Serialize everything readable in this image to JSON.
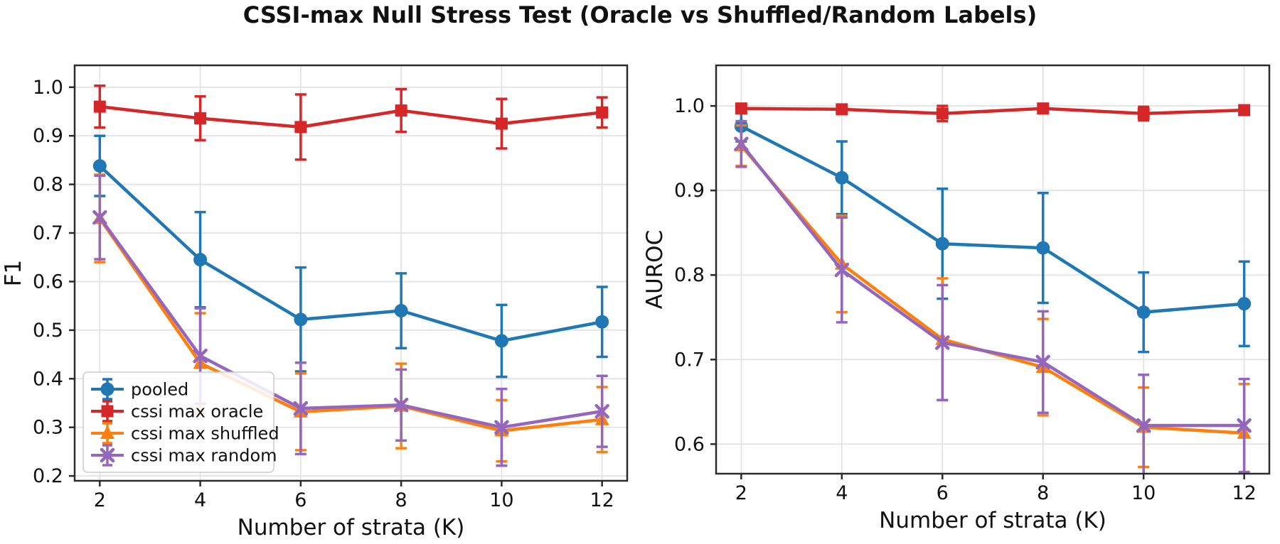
{
  "figure": {
    "title": "CSSI-max Null Stress Test (Oracle vs Shuffled/Random Labels)",
    "background": "#ffffff",
    "text_color": "#111111",
    "grid_color": "#e3e3e3",
    "spine_color": "#2b2b2b",
    "legend_border_color": "#cccccc",
    "legend_background": "#ffffff"
  },
  "chart_data": [
    {
      "type": "line",
      "title": "",
      "xlabel": "Number of strata (K)",
      "ylabel": "F1",
      "x": [
        2,
        4,
        6,
        8,
        10,
        12
      ],
      "xticks": [
        2,
        4,
        6,
        8,
        10,
        12
      ],
      "yticks": [
        0.2,
        0.3,
        0.4,
        0.5,
        0.6,
        0.7,
        0.8,
        0.9,
        1.0
      ],
      "xlim": [
        1.5,
        12.5
      ],
      "ylim": [
        0.19,
        1.045
      ],
      "grid": true,
      "show_legend": true,
      "legend_position": "lower left",
      "series": [
        {
          "name": "pooled",
          "color": "#1f77b4",
          "marker": "circle",
          "values": [
            0.838,
            0.645,
            0.522,
            0.54,
            0.478,
            0.517
          ],
          "yerr": [
            0.062,
            0.098,
            0.107,
            0.077,
            0.074,
            0.072
          ]
        },
        {
          "name": "cssi max oracle",
          "color": "#d62728",
          "marker": "square",
          "values": [
            0.96,
            0.936,
            0.918,
            0.952,
            0.925,
            0.948
          ],
          "yerr": [
            0.043,
            0.045,
            0.067,
            0.044,
            0.051,
            0.031
          ]
        },
        {
          "name": "cssi max shuffled",
          "color": "#ff7f0e",
          "marker": "triangle",
          "values": [
            0.73,
            0.432,
            0.332,
            0.344,
            0.293,
            0.316
          ],
          "yerr": [
            0.09,
            0.103,
            0.079,
            0.087,
            0.063,
            0.067
          ]
        },
        {
          "name": "cssi max random",
          "color": "#9467bd",
          "marker": "x",
          "values": [
            0.732,
            0.447,
            0.339,
            0.346,
            0.3,
            0.333
          ],
          "yerr": [
            0.086,
            0.098,
            0.094,
            0.073,
            0.079,
            0.073
          ]
        }
      ]
    },
    {
      "type": "line",
      "title": "",
      "xlabel": "Number of strata (K)",
      "ylabel": "AUROC",
      "x": [
        2,
        4,
        6,
        8,
        10,
        12
      ],
      "xticks": [
        2,
        4,
        6,
        8,
        10,
        12
      ],
      "yticks": [
        0.6,
        0.7,
        0.8,
        0.9,
        1.0
      ],
      "xlim": [
        1.5,
        12.5
      ],
      "ylim": [
        0.565,
        1.048
      ],
      "grid": true,
      "show_legend": false,
      "legend_position": null,
      "series": [
        {
          "name": "pooled",
          "color": "#1f77b4",
          "marker": "circle",
          "values": [
            0.976,
            0.915,
            0.837,
            0.832,
            0.756,
            0.766
          ],
          "yerr": [
            0.018,
            0.043,
            0.065,
            0.065,
            0.047,
            0.05
          ]
        },
        {
          "name": "cssi max oracle",
          "color": "#d62728",
          "marker": "square",
          "values": [
            0.997,
            0.996,
            0.991,
            0.997,
            0.991,
            0.995
          ],
          "yerr": [
            0.004,
            0.004,
            0.009,
            0.003,
            0.008,
            0.003
          ]
        },
        {
          "name": "cssi max shuffled",
          "color": "#ff7f0e",
          "marker": "triangle",
          "values": [
            0.953,
            0.813,
            0.724,
            0.691,
            0.62,
            0.613
          ],
          "yerr": [
            0.024,
            0.057,
            0.072,
            0.057,
            0.047,
            0.058
          ]
        },
        {
          "name": "cssi max random",
          "color": "#9467bd",
          "marker": "x",
          "values": [
            0.955,
            0.806,
            0.72,
            0.697,
            0.622,
            0.622
          ],
          "yerr": [
            0.027,
            0.062,
            0.068,
            0.06,
            0.06,
            0.055
          ]
        }
      ]
    }
  ]
}
